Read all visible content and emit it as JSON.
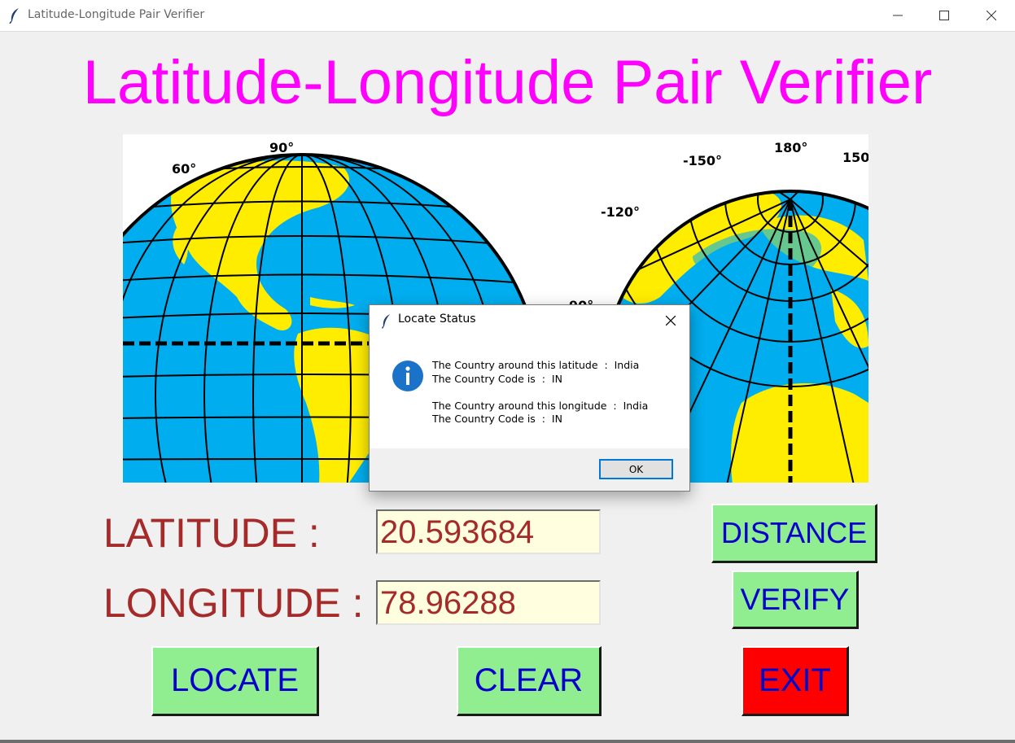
{
  "window": {
    "title": "Latitude-Longitude Pair Verifier",
    "app_icon": "feather-icon"
  },
  "app_title": "Latitude-Longitude Pair Verifier",
  "map": {
    "description_icon": "globe-grid-image",
    "degree_labels": [
      "60°",
      "90°",
      "-150°",
      "180°",
      "150",
      "-120°",
      "90°"
    ]
  },
  "form": {
    "latitude_label": "LATITUDE :",
    "latitude_value": "20.593684",
    "longitude_label": "LONGITUDE :",
    "longitude_value": "78.96288"
  },
  "buttons": {
    "distance": "DISTANCE",
    "verify": "VERIFY",
    "locate": "LOCATE",
    "clear": "CLEAR",
    "exit": "EXIT"
  },
  "dialog": {
    "title": "Locate Status",
    "icon": "info-icon",
    "message": "The Country around this latitude  :  India\nThe Country Code is  :  IN\n\nThe Country around this longitude  :  India\nThe Country Code is  :  IN",
    "ok_label": "OK"
  },
  "colors": {
    "title": "#ff00ff",
    "label": "#a52a2a",
    "button_green": "#90ee90",
    "button_red": "#ff0000",
    "button_text": "#0000cd",
    "entry_bg": "#ffffe0",
    "ocean": "#00aeef",
    "land": "#ffed00"
  }
}
